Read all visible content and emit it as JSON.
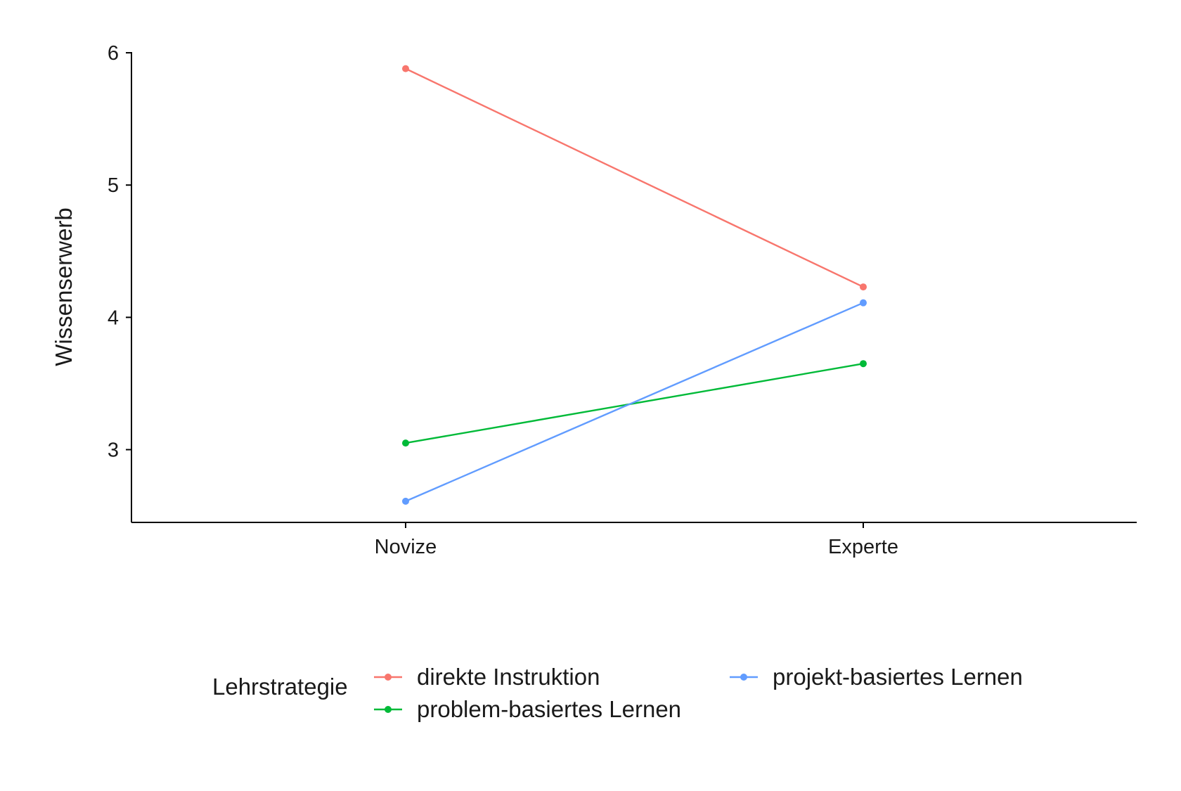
{
  "chart_data": {
    "type": "line",
    "title": "",
    "xlabel": "",
    "ylabel": "Wissenserwerb",
    "categories": [
      "Novize",
      "Experte"
    ],
    "ylim": [
      2.45,
      6.08
    ],
    "yticks": [
      3,
      4,
      5,
      6
    ],
    "grid": false,
    "legend": {
      "title": "Lehrstrategie",
      "placement": "bottom"
    },
    "series": [
      {
        "name": "direkte Instruktion",
        "color": "#F8766D",
        "values": [
          5.88,
          4.23
        ]
      },
      {
        "name": "problem-basiertes Lernen",
        "color": "#00BA38",
        "values": [
          3.05,
          3.65
        ]
      },
      {
        "name": "projekt-basiertes Lernen",
        "color": "#619CFF",
        "values": [
          2.61,
          4.11
        ]
      }
    ]
  }
}
